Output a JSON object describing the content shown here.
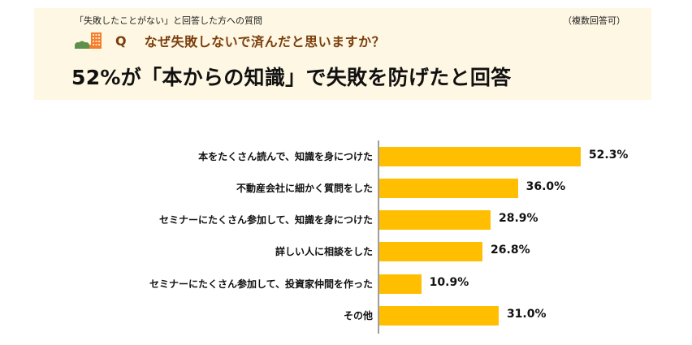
{
  "header": {
    "subheading": "「失敗したことがない」と回答した方への質問",
    "multiple_answers_note": "（複数回答可）",
    "question_marker": "Q",
    "question": "なぜ失敗しないで済んだと思いますか？",
    "headline": "52%が「本からの知識」で失敗を防げたと回答",
    "icon": "building-with-trees-icon"
  },
  "colors": {
    "panel_bg": "#fef7e3",
    "question_text": "#7a3e0c",
    "bar": "#ffbf00",
    "axis": "#9e9e9e",
    "icon_building": "#f47e2c",
    "icon_trees": "#5f8f4e"
  },
  "chart_data": {
    "type": "bar",
    "orientation": "horizontal",
    "title": "なぜ失敗しないで済んだと思いますか？",
    "xlabel": "",
    "ylabel": "",
    "unit": "%",
    "grid": false,
    "legend": null,
    "categories": [
      "本をたくさん読んで、知識を身につけた",
      "不動産会社に細かく質問をした",
      "セミナーにたくさん参加して、知識を身につけた",
      "詳しい人に相談をした",
      "セミナーにたくさん参加して、投資家仲間を作った",
      "その他"
    ],
    "values": [
      52.3,
      36.0,
      28.9,
      26.8,
      10.9,
      31.0
    ],
    "value_labels": [
      "52.3%",
      "36.0%",
      "28.9%",
      "26.8%",
      "10.9%",
      "31.0%"
    ]
  }
}
